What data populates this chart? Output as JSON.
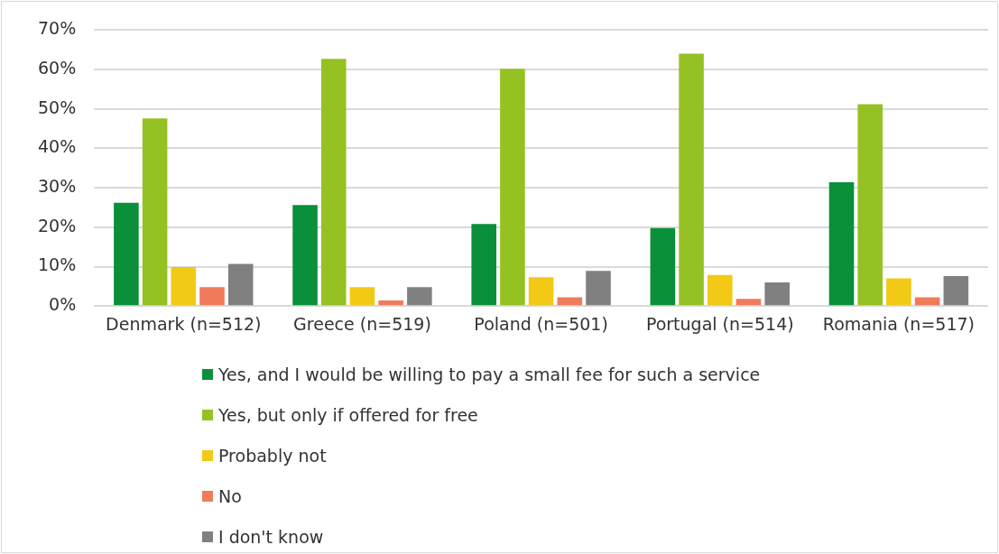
{
  "chart_data": {
    "type": "bar",
    "categories": [
      "Denmark (n=512)",
      "Greece (n=519)",
      "Poland (n=501)",
      "Portugal (n=514)",
      "Romania (n=517)"
    ],
    "series": [
      {
        "name": "Yes, and I would be willing to pay a small fee for such a service",
        "color": "#0a8f3a",
        "values": [
          26.2,
          25.6,
          20.8,
          19.8,
          31.4
        ]
      },
      {
        "name": "Yes, but only if offered for free",
        "color": "#95c122",
        "values": [
          47.6,
          62.7,
          60.2,
          64.0,
          51.2
        ]
      },
      {
        "name": "Probably not",
        "color": "#f2c914",
        "values": [
          9.9,
          4.8,
          7.3,
          7.9,
          7.0
        ]
      },
      {
        "name": "No",
        "color": "#f07a5c",
        "values": [
          4.8,
          1.4,
          2.2,
          1.8,
          2.2
        ]
      },
      {
        "name": "I don't know",
        "color": "#808080",
        "values": [
          10.7,
          4.8,
          8.9,
          6.0,
          7.6
        ]
      }
    ],
    "ylim": [
      0,
      70
    ],
    "yticks": [
      {
        "value": 0,
        "label": "0%"
      },
      {
        "value": 10,
        "label": "10%"
      },
      {
        "value": 20,
        "label": "20%"
      },
      {
        "value": 30,
        "label": "30%"
      },
      {
        "value": 40,
        "label": "40%"
      },
      {
        "value": 50,
        "label": "50%"
      },
      {
        "value": 60,
        "label": "60%"
      },
      {
        "value": 70,
        "label": "70%"
      }
    ],
    "grid": "y",
    "legend": "bottom"
  }
}
